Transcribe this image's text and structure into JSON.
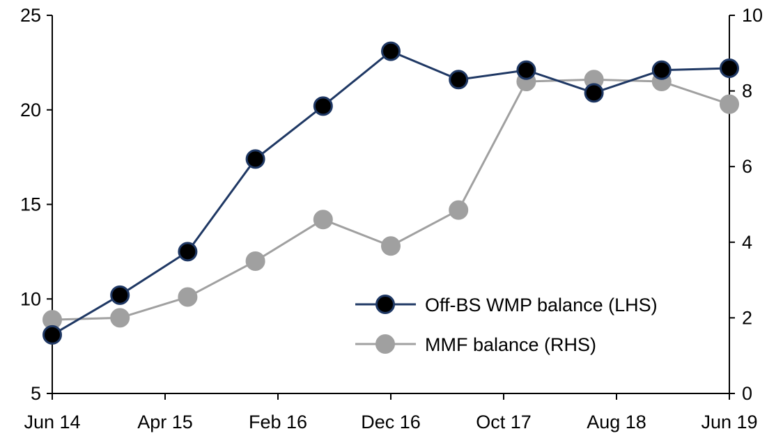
{
  "chart_data": {
    "type": "line",
    "x": [
      "Jun 14",
      "Dec 14",
      "Jun 15",
      "Dec 15",
      "Jun 16",
      "Dec 16",
      "Jun 17",
      "Dec 17",
      "Jun 18",
      "Dec 18",
      "Jun 19"
    ],
    "x_tick_labels": [
      "Jun 14",
      "Apr 15",
      "Feb 16",
      "Dec 16",
      "Oct 17",
      "Aug 18",
      "Jun 19"
    ],
    "y_left": {
      "lim": [
        5,
        25
      ],
      "ticks": [
        "5",
        "10",
        "15",
        "20",
        "25"
      ]
    },
    "y_right": {
      "lim": [
        0,
        10
      ],
      "ticks": [
        "0",
        "2",
        "4",
        "6",
        "8",
        "10"
      ]
    },
    "grid": false,
    "legend_placement": "bottom-right",
    "series": [
      {
        "name": "Off-BS WMP balance (LHS)",
        "axis": "left",
        "color": "#1f3864",
        "marker_fill": "#000000",
        "values": [
          8.1,
          10.2,
          12.5,
          17.4,
          20.2,
          23.1,
          21.6,
          22.1,
          20.9,
          22.1,
          22.2
        ]
      },
      {
        "name": "MMF balance (RHS)",
        "axis": "right",
        "color": "#a0a0a0",
        "marker_fill": "#a0a0a0",
        "values": [
          1.95,
          2.0,
          2.55,
          3.5,
          4.6,
          3.9,
          4.85,
          8.25,
          8.3,
          8.25,
          7.65
        ]
      }
    ]
  }
}
